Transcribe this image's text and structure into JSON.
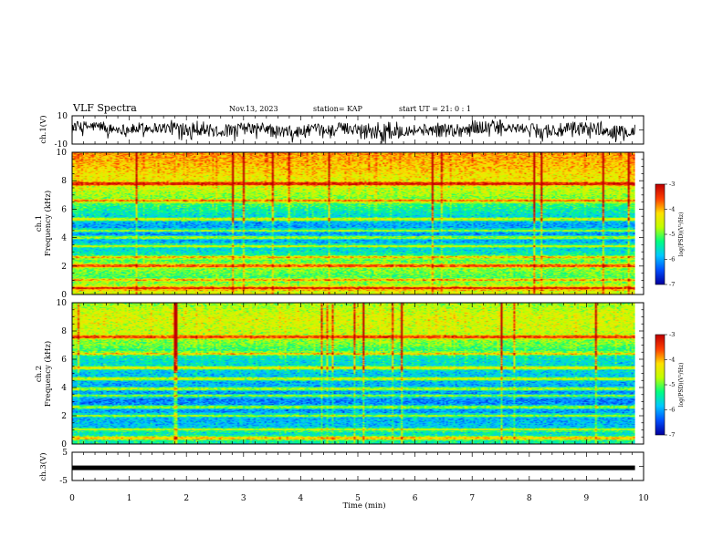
{
  "header": {
    "title": "VLF Spectra",
    "date": "Nov.13, 2023",
    "station": "station= KAP",
    "start": "start  UT =   21: 0  : 1"
  },
  "colors": {
    "background": "#ffffff",
    "axis": "#000000",
    "colormap": [
      "#0000a0",
      "#0050ff",
      "#00c8ff",
      "#00ff80",
      "#c0ff00",
      "#ffe000",
      "#ff4000",
      "#c00000"
    ]
  },
  "chart_data": [
    {
      "type": "line",
      "panel": "ch1-waveform",
      "ylabel": "ch.1(V)",
      "ylim": [
        -10,
        10
      ],
      "ytick_labels": [
        "10",
        "-10"
      ],
      "xlim": [
        0,
        10
      ],
      "x_extent_min": 9.85,
      "description": "waveform amplitude envelope, roughly 0 to 8 V with negative excursions",
      "envelope_top": [
        7,
        5,
        6,
        8,
        5,
        6,
        4,
        5,
        6,
        7,
        5,
        6,
        8,
        5,
        6,
        7,
        4,
        6
      ],
      "envelope_bottom": [
        -2,
        -4,
        -3,
        -5,
        -6,
        -4,
        -7,
        -5,
        -4,
        -8,
        -5,
        -6,
        -4,
        -3,
        -7,
        -5,
        -6,
        -4
      ]
    },
    {
      "type": "heatmap",
      "panel": "ch1-spectrogram",
      "ylabel": "ch.1\nFrequency (kHz)",
      "ylim": [
        0,
        10
      ],
      "ytick_labels": [
        "0",
        "2",
        "4",
        "6",
        "8",
        "10"
      ],
      "xlim": [
        0,
        10
      ],
      "x_extent_min": 9.85,
      "z_quantity": "log(PSD)",
      "z_range": [
        -7,
        -3
      ],
      "colorbar_label": "log(PSD)(V²/Hz)",
      "colorbar_ticks": [
        "-3",
        "-4",
        "-5",
        "-6",
        "-7"
      ],
      "band_frequencies_kHz": [
        0.4,
        1.0,
        2.0,
        2.6,
        3.4,
        4.0,
        4.5,
        5.3,
        6.6,
        7.8
      ],
      "approx_level_by_freq_kHz": {
        "0.5": -4.5,
        "1": -5.2,
        "2": -4.8,
        "3": -5.6,
        "4": -6.1,
        "5": -6.0,
        "6": -5.4,
        "7": -4.8,
        "8": -4.4,
        "9": -4.1,
        "10": -3.9
      }
    },
    {
      "type": "heatmap",
      "panel": "ch2-spectrogram",
      "ylabel": "ch.2\nFrequency (kHz)",
      "ylim": [
        0,
        10
      ],
      "ytick_labels": [
        "0",
        "2",
        "4",
        "6",
        "8",
        "10"
      ],
      "xlim": [
        0,
        10
      ],
      "x_extent_min": 9.85,
      "z_quantity": "log(PSD)",
      "z_range": [
        -7,
        -3
      ],
      "colorbar_label": "log(PSD)(V²/Hz)",
      "colorbar_ticks": [
        "-3",
        "-4",
        "-5",
        "-6",
        "-7"
      ],
      "band_frequencies_kHz": [
        0.4,
        1.0,
        2.0,
        2.6,
        3.4,
        3.9,
        4.6,
        5.4,
        6.4,
        7.6
      ],
      "approx_level_by_freq_kHz": {
        "0.5": -5.4,
        "1": -5.8,
        "2": -6.0,
        "3": -6.2,
        "4": -6.0,
        "5": -5.8,
        "6": -5.6,
        "7": -5.0,
        "8": -4.6,
        "9": -4.5,
        "10": -4.8
      }
    },
    {
      "type": "line",
      "panel": "ch3-waveform",
      "ylabel": "ch.3(V)",
      "ylim": [
        -5,
        5
      ],
      "ytick_labels": [
        "5",
        "-5"
      ],
      "xlim": [
        0,
        10
      ],
      "x_extent_min": 9.85,
      "description": "dense band between about -1.3 and 0.3 V",
      "band": [
        -1.3,
        0.3
      ]
    }
  ],
  "x_axis": {
    "label": "Time (min)",
    "ticks": [
      "0",
      "1",
      "2",
      "3",
      "4",
      "5",
      "6",
      "7",
      "8",
      "9",
      "10"
    ]
  }
}
